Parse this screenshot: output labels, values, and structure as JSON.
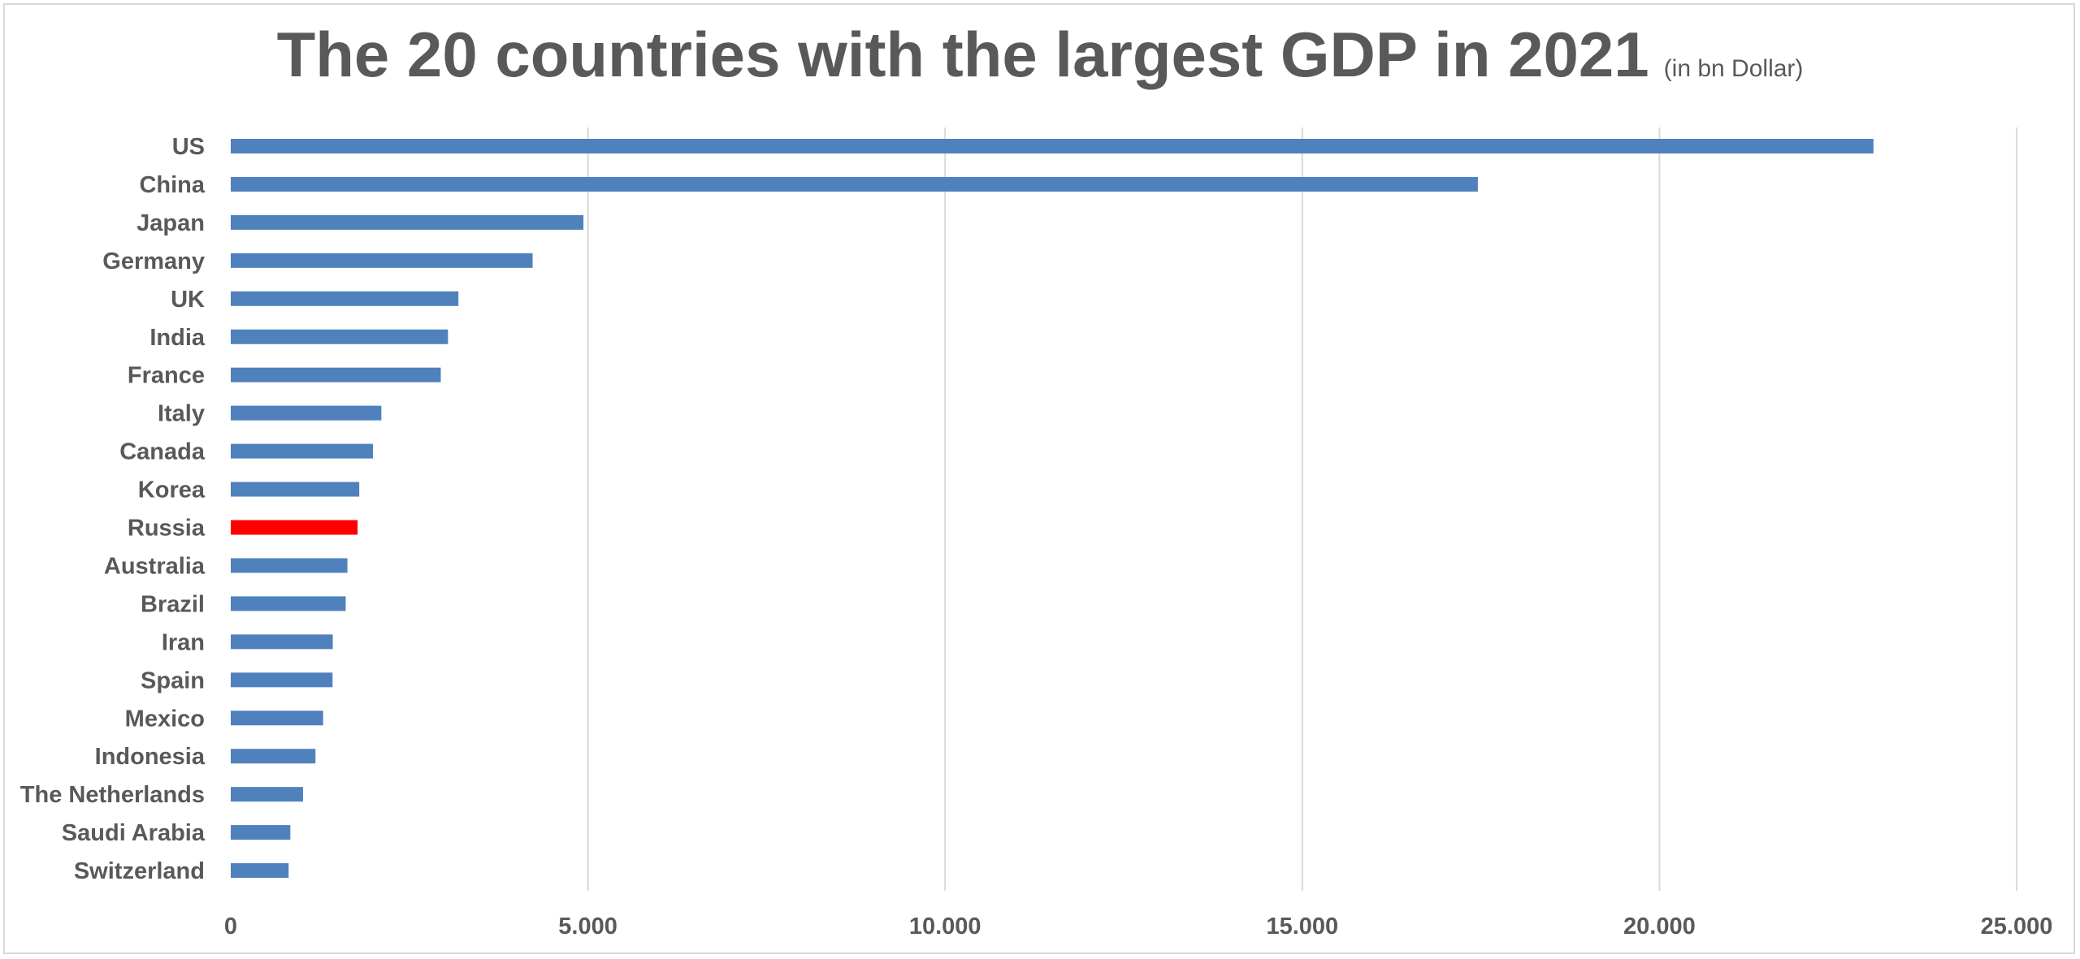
{
  "title": "The 20 countries with the largest GDP in 2021",
  "subtitle": "(in bn Dollar)",
  "chart_data": {
    "type": "bar",
    "orientation": "horizontal",
    "title": "The 20 countries with the largest GDP in 2021",
    "subtitle": "(in bn Dollar)",
    "categories": [
      "US",
      "China",
      "Japan",
      "Germany",
      "UK",
      "India",
      "France",
      "Italy",
      "Canada",
      "Korea",
      "Russia",
      "Australia",
      "Brazil",
      "Iran",
      "Spain",
      "Mexico",
      "Indonesia",
      "The Netherlands",
      "Saudi Arabia",
      "Switzerland"
    ],
    "values": [
      22996,
      17458,
      4937,
      4226,
      3187,
      3041,
      2940,
      2108,
      1991,
      1799,
      1776,
      1633,
      1609,
      1428,
      1425,
      1293,
      1186,
      1012,
      834,
      810
    ],
    "xlim": [
      0,
      25000
    ],
    "ticks": [
      0,
      5000,
      10000,
      15000,
      20000,
      25000
    ],
    "tick_labels": [
      "0",
      "5.000",
      "10.000",
      "15.000",
      "20.000",
      "25.000"
    ],
    "grid": true,
    "xlabel": "",
    "ylabel": "",
    "bar_color": "#4f81bd",
    "highlight": {
      "category": "Russia",
      "color": "#ff0000"
    },
    "gridline_color": "#d9d9d9"
  }
}
